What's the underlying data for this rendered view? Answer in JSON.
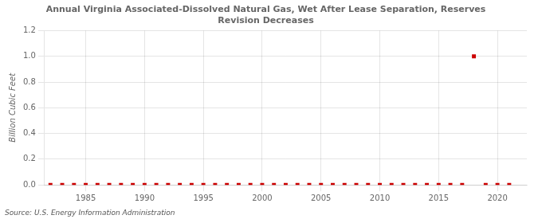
{
  "chart_data": {
    "type": "scatter",
    "title": "Annual Virginia Associated-Dissolved Natural Gas, Wet After Lease Separation, Reserves",
    "subtitle": "Revision Decreases",
    "y_label": "Billion Cubic Feet",
    "source": "Source: U.S. Energy Information Administration",
    "x": [
      1982,
      1983,
      1984,
      1985,
      1986,
      1987,
      1988,
      1989,
      1990,
      1991,
      1992,
      1993,
      1994,
      1995,
      1996,
      1997,
      1998,
      1999,
      2000,
      2001,
      2002,
      2003,
      2004,
      2005,
      2006,
      2007,
      2008,
      2009,
      2010,
      2011,
      2012,
      2013,
      2014,
      2015,
      2016,
      2017,
      2018,
      2019,
      2020,
      2021
    ],
    "values": [
      0,
      0,
      0,
      0,
      0,
      0,
      0,
      0,
      0,
      0,
      0,
      0,
      0,
      0,
      0,
      0,
      0,
      0,
      0,
      0,
      0,
      0,
      0,
      0,
      0,
      0,
      0,
      0,
      0,
      0,
      0,
      0,
      0,
      0,
      0,
      0,
      1.0,
      0,
      0,
      0
    ],
    "color": "#cc0000",
    "marker": "square",
    "line_style": "none",
    "xlim": [
      1981.5,
      2022.5
    ],
    "xticks": [
      1985,
      1990,
      1995,
      2000,
      2005,
      2010,
      2015,
      2020
    ],
    "ylim": [
      0,
      1.2
    ],
    "yticks": [
      {
        "value": 0,
        "label": "0.0"
      },
      0.2,
      0.4,
      0.6,
      0.8,
      {
        "value": 1,
        "label": "1.0"
      },
      1.2
    ],
    "grid": true
  }
}
